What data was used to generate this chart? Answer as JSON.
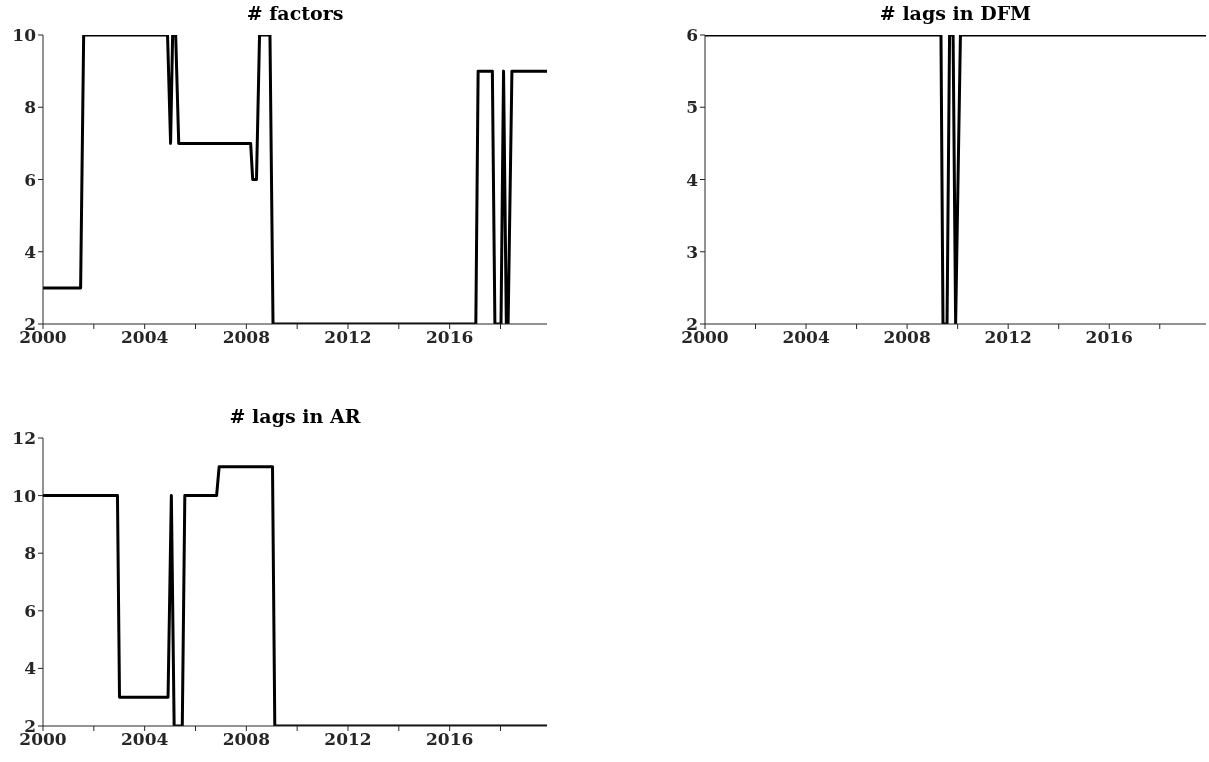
{
  "chart_data": [
    {
      "type": "line",
      "title": "# factors",
      "color": "#000000",
      "x": [
        2000,
        2001.48,
        2001.6,
        2004.9,
        2005.02,
        2005.1,
        2005.22,
        2005.34,
        2008.17,
        2008.25,
        2008.4,
        2008.52,
        2008.93,
        2009.05,
        2017.03,
        2017.12,
        2017.68,
        2017.78,
        2018.02,
        2018.12,
        2018.23,
        2018.3,
        2018.45,
        2019.83
      ],
      "values": [
        3,
        3,
        10,
        10,
        7,
        10,
        10,
        7,
        7,
        6,
        6,
        10,
        10,
        2,
        2,
        9,
        9,
        2,
        2,
        9,
        2,
        2,
        9,
        9
      ],
      "xlim": [
        2000,
        2019.83
      ],
      "xticks": [
        2000,
        {
          "value": 2002,
          "label": null
        },
        2004,
        {
          "value": 2006,
          "label": null
        },
        2008,
        {
          "value": 2010,
          "label": null
        },
        2012,
        {
          "value": 2014,
          "label": null
        },
        2016,
        {
          "value": 2018,
          "label": null
        }
      ],
      "ylim": [
        2,
        10
      ],
      "yticks": [
        2,
        4,
        6,
        8,
        10
      ]
    },
    {
      "type": "line",
      "title": "# lags in DFM",
      "color": "#000000",
      "x": [
        2000,
        2009.34,
        2009.42,
        2009.58,
        2009.68,
        2009.82,
        2009.92,
        2010.11,
        2019.83
      ],
      "values": [
        6,
        6,
        2,
        2,
        6,
        6,
        2,
        6,
        6
      ],
      "xlim": [
        2000,
        2019.83
      ],
      "xticks": [
        2000,
        {
          "value": 2002,
          "label": null
        },
        2004,
        {
          "value": 2006,
          "label": null
        },
        2008,
        {
          "value": 2010,
          "label": null
        },
        2012,
        {
          "value": 2014,
          "label": null
        },
        2016,
        {
          "value": 2018,
          "label": null
        }
      ],
      "ylim": [
        2,
        6
      ],
      "yticks": [
        2,
        3,
        4,
        5,
        6
      ]
    },
    {
      "type": "line",
      "title": "# lags in AR",
      "color": "#000000",
      "x": [
        2000,
        2002.93,
        2003.01,
        2004.92,
        2005.05,
        2005.16,
        2005.48,
        2005.58,
        2006.83,
        2006.93,
        2009.03,
        2009.12,
        2019.83
      ],
      "values": [
        10,
        10,
        3,
        3,
        10,
        2,
        2,
        10,
        10,
        11,
        11,
        2,
        2
      ],
      "xlim": [
        2000,
        2019.83
      ],
      "xticks": [
        2000,
        {
          "value": 2002,
          "label": null
        },
        2004,
        {
          "value": 2006,
          "label": null
        },
        2008,
        {
          "value": 2010,
          "label": null
        },
        2012,
        {
          "value": 2014,
          "label": null
        },
        2016,
        {
          "value": 2018,
          "label": null
        }
      ],
      "ylim": [
        2,
        12
      ],
      "yticks": [
        2,
        4,
        6,
        8,
        10,
        12
      ]
    }
  ]
}
